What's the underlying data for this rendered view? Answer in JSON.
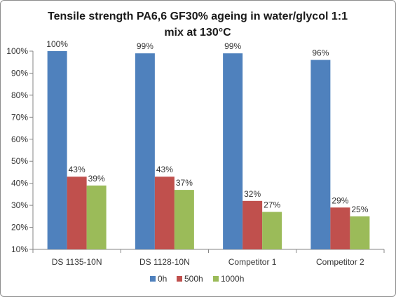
{
  "chart_data": {
    "type": "bar",
    "title_lines": [
      "Tensile strength PA6,6 GF30% ageing in water/glycol 1:1",
      "mix at 130°C"
    ],
    "categories": [
      "DS 1135-10N",
      "DS 1128-10N",
      "Competitor 1",
      "Competitor 2"
    ],
    "series": [
      {
        "name": "0h",
        "color": "#4f81bd",
        "values": [
          100,
          99,
          99,
          96
        ],
        "labels": [
          "100%",
          "99%",
          "99%",
          "96%"
        ]
      },
      {
        "name": "500h",
        "color": "#c0504d",
        "values": [
          43,
          43,
          32,
          29
        ],
        "labels": [
          "43%",
          "43%",
          "32%",
          "29%"
        ]
      },
      {
        "name": "1000h",
        "color": "#9bbb59",
        "values": [
          39,
          37,
          27,
          25
        ],
        "labels": [
          "39%",
          "37%",
          "27%",
          "25%"
        ]
      }
    ],
    "ylim": [
      10,
      100
    ],
    "yticks": [
      10,
      20,
      30,
      40,
      50,
      60,
      70,
      80,
      90,
      100
    ],
    "ytick_labels": [
      "10%",
      "20%",
      "30%",
      "40%",
      "50%",
      "60%",
      "70%",
      "80%",
      "90%",
      "100%"
    ],
    "grid": false,
    "legend_position": "bottom"
  }
}
